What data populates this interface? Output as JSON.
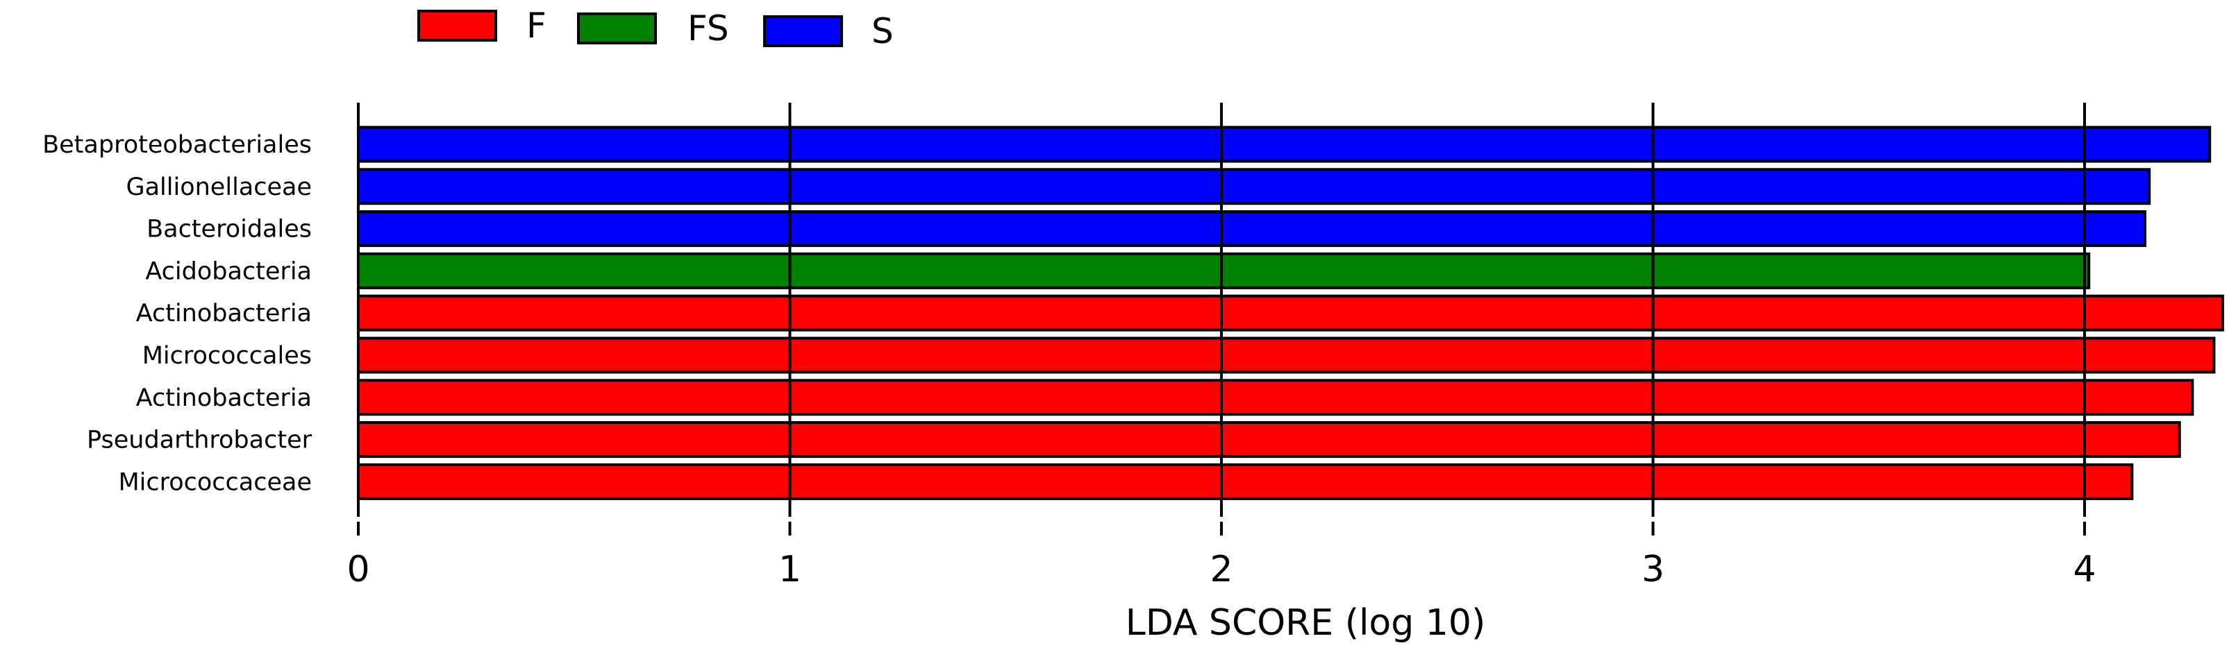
{
  "chart_data": {
    "type": "bar",
    "orientation": "horizontal",
    "title": "",
    "xlabel": "LDA SCORE (log 10)",
    "ylabel": "",
    "xlim": [
      0,
      4.3
    ],
    "xticks": [
      0,
      1,
      2,
      3,
      4
    ],
    "grid": "vertical lines at major ticks",
    "legend": {
      "placement": "top-left",
      "entries": [
        {
          "label": "F",
          "color": "#ff0000"
        },
        {
          "label": "FS",
          "color": "#008000"
        },
        {
          "label": "S",
          "color": "#0000ff"
        }
      ]
    },
    "categories": [
      "Betaproteobacteriales",
      "Gallionellaceae",
      "Bacteroidales",
      "Acidobacteria",
      "Actinobacteria",
      "Micrococcales",
      "Actinobacteria",
      "Pseudarthrobacter",
      "Micrococcaceae"
    ],
    "values": [
      4.29,
      4.15,
      4.14,
      4.01,
      4.32,
      4.3,
      4.25,
      4.22,
      4.11
    ],
    "groups": [
      "S",
      "S",
      "S",
      "FS",
      "F",
      "F",
      "F",
      "F",
      "F"
    ]
  }
}
